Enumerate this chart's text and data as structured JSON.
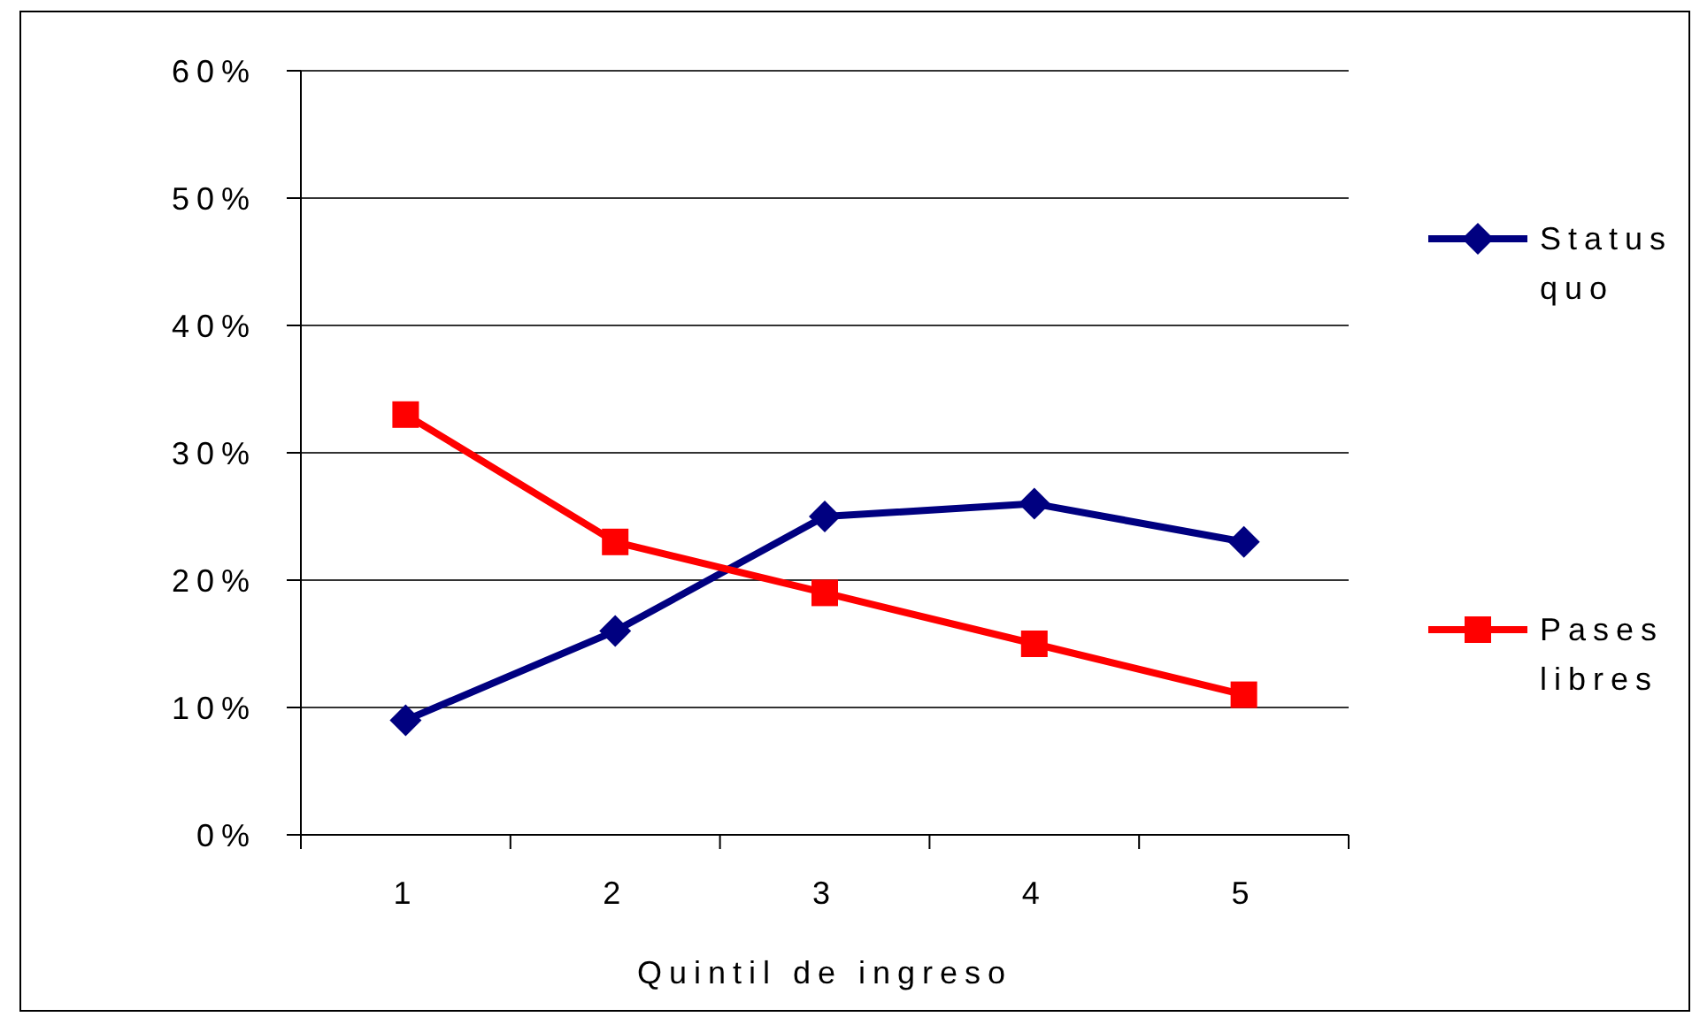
{
  "chart_data": {
    "type": "line",
    "xlabel": "Quintil de ingreso",
    "categories": [
      "1",
      "2",
      "3",
      "4",
      "5"
    ],
    "series": [
      {
        "name": "Status quo",
        "color": "#000080",
        "marker": "diamond",
        "values": [
          9,
          16,
          25,
          26,
          23
        ]
      },
      {
        "name": "Pases libres",
        "color": "#ff0000",
        "marker": "square",
        "values": [
          33,
          23,
          19,
          15,
          11
        ]
      }
    ],
    "ylim": [
      0,
      60
    ],
    "yticks": [
      {
        "value": 0,
        "label": "0%"
      },
      {
        "value": 10,
        "label": "10%"
      },
      {
        "value": 20,
        "label": "20%"
      },
      {
        "value": 30,
        "label": "30%"
      },
      {
        "value": 40,
        "label": "40%"
      },
      {
        "value": 50,
        "label": "50%"
      },
      {
        "value": 60,
        "label": "60%"
      }
    ],
    "grid": "y",
    "legend": "right",
    "line_style": "solid"
  }
}
